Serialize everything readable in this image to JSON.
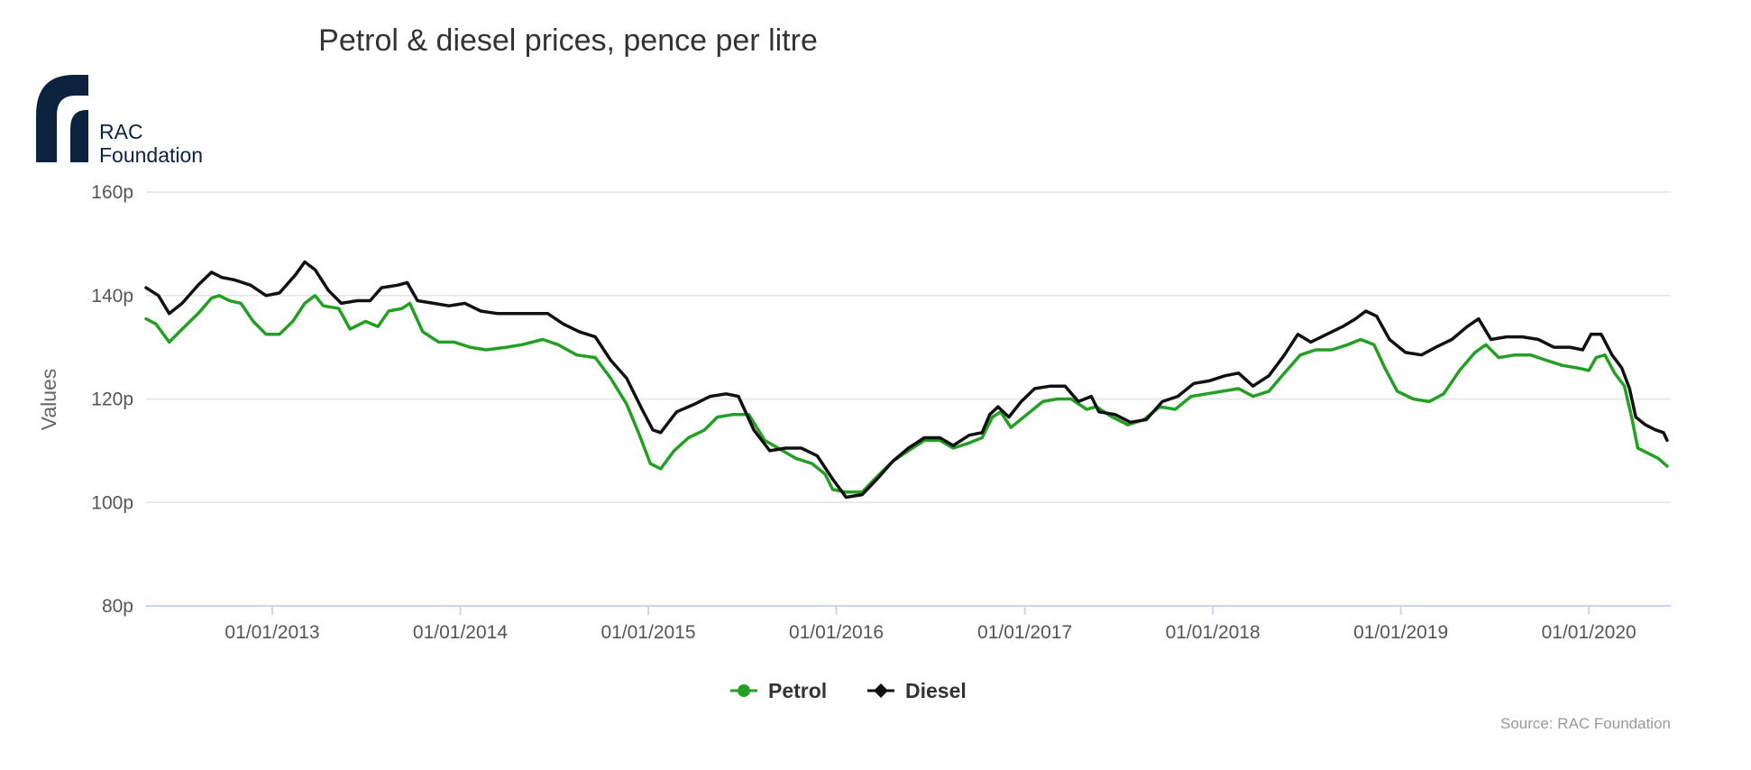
{
  "chart_data": {
    "type": "line",
    "title": "Petrol & diesel prices, pence per litre",
    "xlabel": "",
    "ylabel": "Values",
    "ylim": [
      80,
      160
    ],
    "yticks": [
      80,
      100,
      120,
      140,
      160
    ],
    "ytick_suffix": "p",
    "x_start": "2012-05-01",
    "x_end": "2020-06-08",
    "xticks": [
      {
        "date": "2013-01-01",
        "label": "01/01/2013"
      },
      {
        "date": "2014-01-01",
        "label": "01/01/2014"
      },
      {
        "date": "2015-01-01",
        "label": "01/01/2015"
      },
      {
        "date": "2016-01-01",
        "label": "01/01/2016"
      },
      {
        "date": "2017-01-01",
        "label": "01/01/2017"
      },
      {
        "date": "2018-01-01",
        "label": "01/01/2018"
      },
      {
        "date": "2019-01-01",
        "label": "01/01/2019"
      },
      {
        "date": "2020-01-01",
        "label": "01/01/2020"
      }
    ],
    "grid": true,
    "legend_position": "bottom-center",
    "series": [
      {
        "name": "Petrol",
        "color": "#23a024",
        "marker": "circle",
        "points": [
          [
            "2012-05-01",
            135.5
          ],
          [
            "2012-05-20",
            134.5
          ],
          [
            "2012-06-15",
            131.0
          ],
          [
            "2012-07-10",
            133.5
          ],
          [
            "2012-08-10",
            136.5
          ],
          [
            "2012-09-05",
            139.5
          ],
          [
            "2012-09-20",
            140.0
          ],
          [
            "2012-10-10",
            139.0
          ],
          [
            "2012-11-01",
            138.5
          ],
          [
            "2012-11-25",
            135.0
          ],
          [
            "2012-12-20",
            132.5
          ],
          [
            "2013-01-15",
            132.5
          ],
          [
            "2013-02-10",
            135.0
          ],
          [
            "2013-03-05",
            138.5
          ],
          [
            "2013-03-25",
            140.0
          ],
          [
            "2013-04-10",
            138.0
          ],
          [
            "2013-05-10",
            137.5
          ],
          [
            "2013-06-01",
            133.5
          ],
          [
            "2013-07-01",
            135.0
          ],
          [
            "2013-07-25",
            134.0
          ],
          [
            "2013-08-15",
            137.0
          ],
          [
            "2013-09-10",
            137.5
          ],
          [
            "2013-09-25",
            138.5
          ],
          [
            "2013-10-20",
            133.0
          ],
          [
            "2013-11-20",
            131.0
          ],
          [
            "2013-12-20",
            131.0
          ],
          [
            "2014-01-20",
            130.0
          ],
          [
            "2014-02-20",
            129.5
          ],
          [
            "2014-04-01",
            130.0
          ],
          [
            "2014-05-01",
            130.5
          ],
          [
            "2014-06-10",
            131.5
          ],
          [
            "2014-07-10",
            130.5
          ],
          [
            "2014-08-15",
            128.5
          ],
          [
            "2014-09-20",
            128.0
          ],
          [
            "2014-10-20",
            124.0
          ],
          [
            "2014-11-20",
            119.0
          ],
          [
            "2014-12-15",
            113.0
          ],
          [
            "2015-01-05",
            107.5
          ],
          [
            "2015-01-25",
            106.5
          ],
          [
            "2015-02-20",
            110.0
          ],
          [
            "2015-03-20",
            112.5
          ],
          [
            "2015-04-20",
            114.0
          ],
          [
            "2015-05-15",
            116.5
          ],
          [
            "2015-06-15",
            117.0
          ],
          [
            "2015-07-15",
            117.0
          ],
          [
            "2015-08-15",
            112.0
          ],
          [
            "2015-09-10",
            110.5
          ],
          [
            "2015-10-15",
            108.5
          ],
          [
            "2015-11-15",
            107.5
          ],
          [
            "2015-12-10",
            105.5
          ],
          [
            "2015-12-25",
            102.5
          ],
          [
            "2016-01-20",
            102.0
          ],
          [
            "2016-02-20",
            102.0
          ],
          [
            "2016-03-20",
            105.0
          ],
          [
            "2016-04-20",
            108.0
          ],
          [
            "2016-05-20",
            110.0
          ],
          [
            "2016-06-20",
            112.0
          ],
          [
            "2016-07-20",
            112.0
          ],
          [
            "2016-08-15",
            110.5
          ],
          [
            "2016-09-15",
            111.5
          ],
          [
            "2016-10-10",
            112.5
          ],
          [
            "2016-10-30",
            116.5
          ],
          [
            "2016-11-15",
            117.5
          ],
          [
            "2016-12-05",
            114.5
          ],
          [
            "2017-01-05",
            117.0
          ],
          [
            "2017-02-05",
            119.5
          ],
          [
            "2017-03-05",
            120.0
          ],
          [
            "2017-04-01",
            120.0
          ],
          [
            "2017-05-01",
            118.0
          ],
          [
            "2017-05-20",
            118.5
          ],
          [
            "2017-06-20",
            116.5
          ],
          [
            "2017-07-20",
            115.0
          ],
          [
            "2017-08-20",
            116.0
          ],
          [
            "2017-09-20",
            118.5
          ],
          [
            "2017-10-20",
            118.0
          ],
          [
            "2017-11-20",
            120.5
          ],
          [
            "2017-12-20",
            121.0
          ],
          [
            "2018-01-20",
            121.5
          ],
          [
            "2018-02-20",
            122.0
          ],
          [
            "2018-03-20",
            120.5
          ],
          [
            "2018-04-20",
            121.5
          ],
          [
            "2018-05-20",
            125.0
          ],
          [
            "2018-06-20",
            128.5
          ],
          [
            "2018-07-20",
            129.5
          ],
          [
            "2018-08-20",
            129.5
          ],
          [
            "2018-09-20",
            130.5
          ],
          [
            "2018-10-15",
            131.5
          ],
          [
            "2018-11-10",
            130.5
          ],
          [
            "2018-12-01",
            126.0
          ],
          [
            "2018-12-25",
            121.5
          ],
          [
            "2019-01-25",
            120.0
          ],
          [
            "2019-02-25",
            119.5
          ],
          [
            "2019-03-25",
            121.0
          ],
          [
            "2019-04-25",
            125.5
          ],
          [
            "2019-05-25",
            129.0
          ],
          [
            "2019-06-15",
            130.5
          ],
          [
            "2019-07-10",
            128.0
          ],
          [
            "2019-08-10",
            128.5
          ],
          [
            "2019-09-10",
            128.5
          ],
          [
            "2019-10-10",
            127.5
          ],
          [
            "2019-11-10",
            126.5
          ],
          [
            "2019-12-10",
            126.0
          ],
          [
            "2020-01-01",
            125.5
          ],
          [
            "2020-01-15",
            128.0
          ],
          [
            "2020-02-01",
            128.5
          ],
          [
            "2020-02-20",
            125.0
          ],
          [
            "2020-03-10",
            122.5
          ],
          [
            "2020-03-25",
            116.0
          ],
          [
            "2020-04-05",
            110.5
          ],
          [
            "2020-04-25",
            109.5
          ],
          [
            "2020-05-15",
            108.5
          ],
          [
            "2020-06-01",
            107.0
          ]
        ]
      },
      {
        "name": "Diesel",
        "color": "#111111",
        "marker": "diamond",
        "points": [
          [
            "2012-05-01",
            141.5
          ],
          [
            "2012-05-25",
            140.0
          ],
          [
            "2012-06-15",
            136.5
          ],
          [
            "2012-07-10",
            138.5
          ],
          [
            "2012-08-10",
            142.0
          ],
          [
            "2012-09-05",
            144.5
          ],
          [
            "2012-09-25",
            143.5
          ],
          [
            "2012-10-20",
            143.0
          ],
          [
            "2012-11-20",
            142.0
          ],
          [
            "2012-12-20",
            140.0
          ],
          [
            "2013-01-15",
            140.5
          ],
          [
            "2013-02-15",
            144.0
          ],
          [
            "2013-03-05",
            146.5
          ],
          [
            "2013-03-25",
            145.0
          ],
          [
            "2013-04-20",
            141.0
          ],
          [
            "2013-05-15",
            138.5
          ],
          [
            "2013-06-15",
            139.0
          ],
          [
            "2013-07-10",
            139.0
          ],
          [
            "2013-08-01",
            141.5
          ],
          [
            "2013-09-01",
            142.0
          ],
          [
            "2013-09-20",
            142.5
          ],
          [
            "2013-10-10",
            139.0
          ],
          [
            "2013-11-10",
            138.5
          ],
          [
            "2013-12-10",
            138.0
          ],
          [
            "2014-01-10",
            138.5
          ],
          [
            "2014-02-10",
            137.0
          ],
          [
            "2014-03-15",
            136.5
          ],
          [
            "2014-04-15",
            136.5
          ],
          [
            "2014-05-15",
            136.5
          ],
          [
            "2014-06-20",
            136.5
          ],
          [
            "2014-07-20",
            134.5
          ],
          [
            "2014-08-20",
            133.0
          ],
          [
            "2014-09-20",
            132.0
          ],
          [
            "2014-10-20",
            127.5
          ],
          [
            "2014-11-20",
            124.0
          ],
          [
            "2014-12-20",
            118.0
          ],
          [
            "2015-01-10",
            114.0
          ],
          [
            "2015-01-25",
            113.5
          ],
          [
            "2015-02-25",
            117.5
          ],
          [
            "2015-04-01",
            119.0
          ],
          [
            "2015-05-01",
            120.5
          ],
          [
            "2015-06-01",
            121.0
          ],
          [
            "2015-06-25",
            120.5
          ],
          [
            "2015-07-25",
            114.0
          ],
          [
            "2015-08-25",
            110.0
          ],
          [
            "2015-09-25",
            110.5
          ],
          [
            "2015-10-25",
            110.5
          ],
          [
            "2015-11-25",
            109.0
          ],
          [
            "2015-12-25",
            104.5
          ],
          [
            "2016-01-20",
            101.0
          ],
          [
            "2016-02-20",
            101.5
          ],
          [
            "2016-03-20",
            104.5
          ],
          [
            "2016-04-20",
            108.0
          ],
          [
            "2016-05-20",
            110.5
          ],
          [
            "2016-06-20",
            112.5
          ],
          [
            "2016-07-20",
            112.5
          ],
          [
            "2016-08-15",
            111.0
          ],
          [
            "2016-09-15",
            113.0
          ],
          [
            "2016-10-10",
            113.5
          ],
          [
            "2016-10-25",
            117.0
          ],
          [
            "2016-11-10",
            118.5
          ],
          [
            "2016-12-01",
            116.5
          ],
          [
            "2016-12-25",
            119.5
          ],
          [
            "2017-01-20",
            122.0
          ],
          [
            "2017-02-20",
            122.5
          ],
          [
            "2017-03-20",
            122.5
          ],
          [
            "2017-04-15",
            119.5
          ],
          [
            "2017-05-10",
            120.5
          ],
          [
            "2017-05-25",
            117.5
          ],
          [
            "2017-06-25",
            117.0
          ],
          [
            "2017-07-25",
            115.5
          ],
          [
            "2017-08-25",
            116.0
          ],
          [
            "2017-09-25",
            119.5
          ],
          [
            "2017-10-25",
            120.5
          ],
          [
            "2017-11-25",
            123.0
          ],
          [
            "2017-12-25",
            123.5
          ],
          [
            "2018-01-25",
            124.5
          ],
          [
            "2018-02-20",
            125.0
          ],
          [
            "2018-03-20",
            122.5
          ],
          [
            "2018-04-20",
            124.5
          ],
          [
            "2018-05-20",
            128.5
          ],
          [
            "2018-06-15",
            132.5
          ],
          [
            "2018-07-10",
            131.0
          ],
          [
            "2018-08-10",
            132.5
          ],
          [
            "2018-09-10",
            134.0
          ],
          [
            "2018-10-05",
            135.5
          ],
          [
            "2018-10-25",
            137.0
          ],
          [
            "2018-11-15",
            136.0
          ],
          [
            "2018-12-10",
            131.5
          ],
          [
            "2019-01-10",
            129.0
          ],
          [
            "2019-02-10",
            128.5
          ],
          [
            "2019-03-10",
            130.0
          ],
          [
            "2019-04-10",
            131.5
          ],
          [
            "2019-05-10",
            134.0
          ],
          [
            "2019-06-01",
            135.5
          ],
          [
            "2019-06-25",
            131.5
          ],
          [
            "2019-07-25",
            132.0
          ],
          [
            "2019-08-25",
            132.0
          ],
          [
            "2019-09-25",
            131.5
          ],
          [
            "2019-10-25",
            130.0
          ],
          [
            "2019-11-25",
            130.0
          ],
          [
            "2019-12-20",
            129.5
          ],
          [
            "2020-01-05",
            132.5
          ],
          [
            "2020-01-25",
            132.5
          ],
          [
            "2020-02-15",
            128.5
          ],
          [
            "2020-03-05",
            126.0
          ],
          [
            "2020-03-20",
            122.0
          ],
          [
            "2020-04-01",
            116.5
          ],
          [
            "2020-04-20",
            115.0
          ],
          [
            "2020-05-10",
            114.0
          ],
          [
            "2020-05-25",
            113.5
          ],
          [
            "2020-06-01",
            112.0
          ]
        ]
      }
    ]
  },
  "logo": {
    "line1": "RAC",
    "line2": "Foundation",
    "color": "#0c2340"
  },
  "source": "Source: RAC Foundation"
}
